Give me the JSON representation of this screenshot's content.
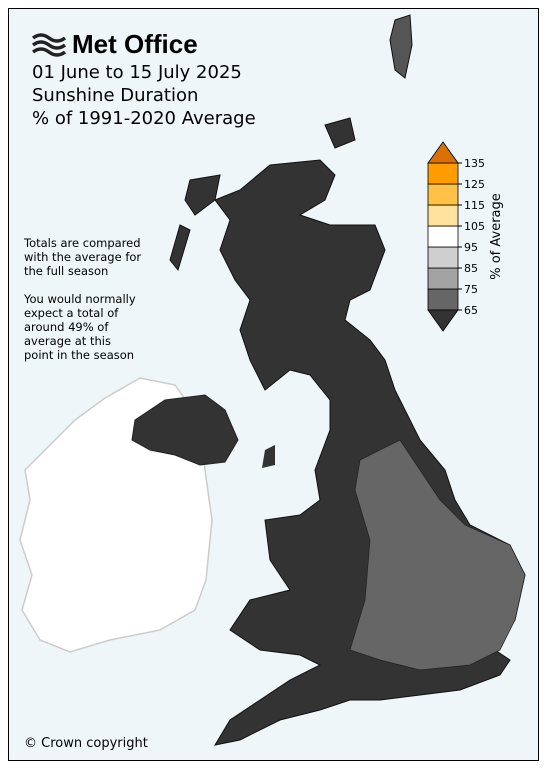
{
  "header": {
    "brand": "Met Office",
    "title_lines": [
      "01 June to 15 July 2025",
      "Sunshine Duration",
      "% of 1991-2020 Average"
    ]
  },
  "notes": [
    [
      "Totals are compared",
      "with the average for",
      "the full season"
    ],
    [
      "You would normally",
      "expect a total of",
      "around 49% of",
      "average at this",
      "point in the season"
    ]
  ],
  "legend": {
    "label": "% of Average",
    "ticks": [
      65,
      75,
      85,
      95,
      105,
      115,
      125,
      135
    ],
    "below_color": "#333333",
    "colors": [
      "#666666",
      "#a3a3a3",
      "#cfcfcf",
      "#ffffff",
      "#ffe29e",
      "#ffc247",
      "#ff9c00"
    ],
    "above_color": "#d97000"
  },
  "footer": {
    "copyright": "© Crown copyright"
  }
}
